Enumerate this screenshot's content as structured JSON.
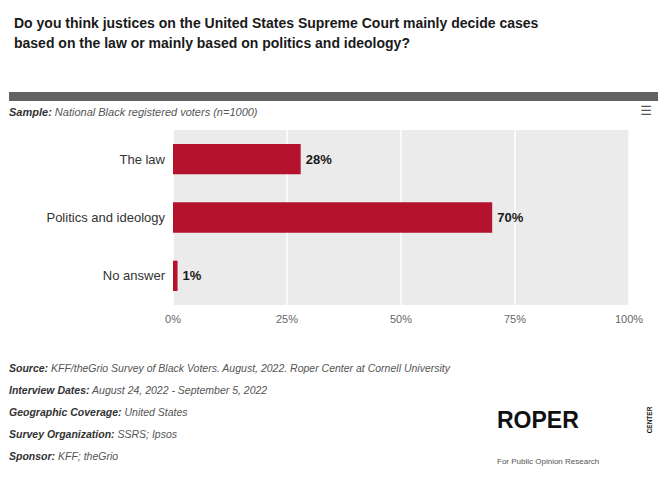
{
  "chart_data": {
    "type": "bar",
    "orientation": "horizontal",
    "title": "Do you think justices on the United States Supreme Court mainly decide cases\nbased on the law or mainly based on politics and ideology?",
    "subtitle": "Sample: National Black registered voters (n=1000)",
    "categories": [
      "The law",
      "Politics and ideology",
      "No answer"
    ],
    "values": [
      28,
      70,
      1
    ],
    "value_labels": [
      "28%",
      "70%",
      "1%"
    ],
    "data_labels": true,
    "color": "#B5122E",
    "xlim": [
      0,
      100
    ],
    "xticks": [
      {
        "value": 0,
        "label": "0%"
      },
      {
        "value": 25,
        "label": "25%"
      },
      {
        "value": 50,
        "label": "50%"
      },
      {
        "value": 75,
        "label": "75%"
      },
      {
        "value": 100,
        "label": "100%"
      }
    ],
    "grid": true,
    "annotations": [
      "Source: KFF/theGrio Survey of Black Voters. August, 2022. Roper Center at Cornell University",
      "Interview Dates: August 24, 2022 - September 5, 2022",
      "Geographic Coverage: United States",
      "Survey Organization: SSRS; Ipsos",
      "Sponsor: KFF; theGrio",
      "ROPER",
      "CENTER",
      "For Public Opinion Research",
      "☰"
    ]
  }
}
